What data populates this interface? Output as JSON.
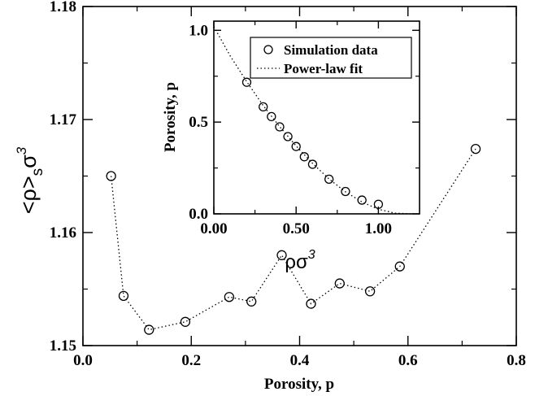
{
  "chart_data": [
    {
      "type": "scatter",
      "xlabel": "Porosity, p",
      "xlim": [
        0.0,
        0.8
      ],
      "ylim": [
        1.15,
        1.18
      ],
      "x_ticks": [
        "0.0",
        "0.2",
        "0.4",
        "0.6",
        "0.8"
      ],
      "y_ticks": [
        "1.15",
        "1.16",
        "1.17",
        "1.18"
      ],
      "series": [
        {
          "line_style": "dotted",
          "marker": "open-circle",
          "x": [
            0.052,
            0.075,
            0.122,
            0.189,
            0.27,
            0.311,
            0.367,
            0.421,
            0.474,
            0.53,
            0.585,
            0.725
          ],
          "y": [
            1.165,
            1.1544,
            1.1514,
            1.1521,
            1.1543,
            1.1539,
            1.158,
            1.1537,
            1.1555,
            1.1548,
            1.157,
            1.1674
          ]
        }
      ]
    },
    {
      "type": "scatter",
      "position": "inset",
      "ylabel": "Porosity, p",
      "xlim": [
        0.0,
        1.25
      ],
      "ylim": [
        0.0,
        1.05
      ],
      "x_ticks": [
        "0.00",
        "0.50",
        "1.00"
      ],
      "y_ticks": [
        "0.0",
        "0.5",
        "1.0"
      ],
      "series": [
        {
          "name": "Simulation data",
          "marker": "open-circle",
          "x": [
            0.2,
            0.3,
            0.35,
            0.4,
            0.45,
            0.5,
            0.55,
            0.6,
            0.7,
            0.8,
            0.9,
            1.0
          ],
          "y": [
            0.717,
            0.583,
            0.53,
            0.474,
            0.421,
            0.367,
            0.311,
            0.27,
            0.189,
            0.122,
            0.075,
            0.052
          ]
        },
        {
          "name": "Power-law fit",
          "line_style": "dotted",
          "x": [
            0.0,
            0.1,
            0.2,
            0.3,
            0.4,
            0.5,
            0.6,
            0.7,
            0.8,
            0.9,
            1.0,
            1.1,
            1.2
          ],
          "y": [
            1.02,
            0.86,
            0.72,
            0.59,
            0.475,
            0.37,
            0.275,
            0.19,
            0.12,
            0.065,
            0.025,
            0.004,
            0.0
          ]
        }
      ]
    }
  ],
  "labels": {
    "main_ylabel_base": "<ρ>",
    "main_ylabel_sub": "s",
    "main_ylabel_sigma": "σ",
    "main_ylabel_exp": "3",
    "inset_xlabel_base": "ρσ",
    "inset_xlabel_exp": "3"
  }
}
